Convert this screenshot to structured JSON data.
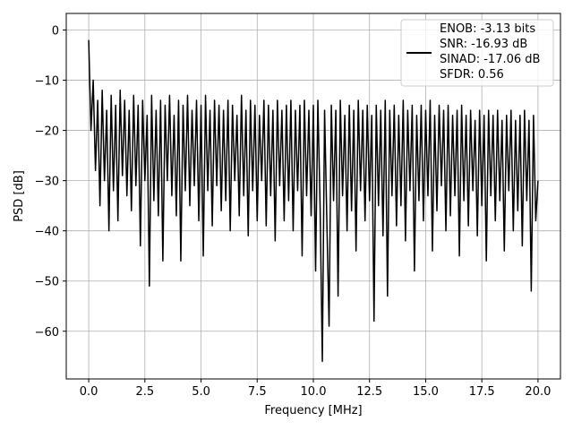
{
  "chart_data": {
    "type": "line",
    "x_label": "Frequency [MHz]",
    "y_label": "PSD [dB]",
    "xlim": [
      -1,
      21
    ],
    "ylim": [
      -69.5,
      3.3
    ],
    "xticks": [
      {
        "value": 0,
        "label": "0.0"
      },
      {
        "value": 2.5,
        "label": "2.5"
      },
      {
        "value": 5,
        "label": "5.0"
      },
      {
        "value": 7.5,
        "label": "7.5"
      },
      {
        "value": 10,
        "label": "10.0"
      },
      {
        "value": 12.5,
        "label": "12.5"
      },
      {
        "value": 15,
        "label": "15.0"
      },
      {
        "value": 17.5,
        "label": "17.5"
      },
      {
        "value": 20,
        "label": "20.0"
      }
    ],
    "yticks": [
      0,
      {
        "value": -10,
        "label": "−10"
      },
      {
        "value": -20,
        "label": "−20"
      },
      {
        "value": -30,
        "label": "−30"
      },
      {
        "value": -40,
        "label": "−40"
      },
      {
        "value": -50,
        "label": "−50"
      },
      {
        "value": -60,
        "label": "−60"
      }
    ],
    "grid": true,
    "legend": "upper right",
    "x": [
      0,
      0.1,
      0.2,
      0.3,
      0.4,
      0.5,
      0.6,
      0.7,
      0.8,
      0.9,
      1,
      1.1,
      1.2,
      1.3,
      1.4,
      1.5,
      1.6,
      1.7,
      1.8,
      1.9,
      2,
      2.1,
      2.2,
      2.3,
      2.4,
      2.5,
      2.6,
      2.7,
      2.8,
      2.9,
      3,
      3.1,
      3.2,
      3.3,
      3.4,
      3.5,
      3.6,
      3.7,
      3.8,
      3.9,
      4,
      4.1,
      4.2,
      4.3,
      4.4,
      4.5,
      4.6,
      4.7,
      4.8,
      4.9,
      5,
      5.1,
      5.2,
      5.3,
      5.4,
      5.5,
      5.6,
      5.7,
      5.8,
      5.9,
      6,
      6.1,
      6.2,
      6.3,
      6.4,
      6.5,
      6.6,
      6.7,
      6.8,
      6.9,
      7,
      7.1,
      7.2,
      7.3,
      7.4,
      7.5,
      7.6,
      7.7,
      7.8,
      7.9,
      8,
      8.1,
      8.2,
      8.3,
      8.4,
      8.5,
      8.6,
      8.7,
      8.8,
      8.9,
      9,
      9.1,
      9.2,
      9.3,
      9.4,
      9.5,
      9.6,
      9.7,
      9.8,
      9.9,
      10,
      10.1,
      10.2,
      10.3,
      10.4,
      10.5,
      10.6,
      10.7,
      10.8,
      10.9,
      11,
      11.1,
      11.2,
      11.3,
      11.4,
      11.5,
      11.6,
      11.7,
      11.8,
      11.9,
      12,
      12.1,
      12.2,
      12.3,
      12.4,
      12.5,
      12.6,
      12.7,
      12.8,
      12.9,
      13,
      13.1,
      13.2,
      13.3,
      13.4,
      13.5,
      13.6,
      13.7,
      13.8,
      13.9,
      14,
      14.1,
      14.2,
      14.3,
      14.4,
      14.5,
      14.6,
      14.7,
      14.8,
      14.9,
      15,
      15.1,
      15.2,
      15.3,
      15.4,
      15.5,
      15.6,
      15.7,
      15.8,
      15.9,
      16,
      16.1,
      16.2,
      16.3,
      16.4,
      16.5,
      16.6,
      16.7,
      16.8,
      16.9,
      17,
      17.1,
      17.2,
      17.3,
      17.4,
      17.5,
      17.6,
      17.7,
      17.8,
      17.9,
      18,
      18.1,
      18.2,
      18.3,
      18.4,
      18.5,
      18.6,
      18.7,
      18.8,
      18.9,
      19,
      19.1,
      19.2,
      19.3,
      19.4,
      19.5,
      19.6,
      19.7,
      19.8,
      19.9,
      20
    ],
    "series": [
      {
        "name": "ENOB: -3.13 bits\nSNR: -16.93 dB\nSINAD: -17.06 dB\nSFDR: 0.56",
        "color": "#000000",
        "values": [
          -2,
          -20,
          -10,
          -28,
          -14,
          -35,
          -12,
          -30,
          -16,
          -40,
          -13,
          -32,
          -15,
          -38,
          -12,
          -29,
          -14,
          -33,
          -16,
          -36,
          -13,
          -31,
          -15,
          -43,
          -14,
          -30,
          -17,
          -51,
          -13,
          -34,
          -16,
          -37,
          -14,
          -46,
          -15,
          -30,
          -13,
          -33,
          -17,
          -37,
          -14,
          -46,
          -15,
          -32,
          -13,
          -35,
          -16,
          -31,
          -14,
          -38,
          -15,
          -45,
          -13,
          -32,
          -16,
          -39,
          -14,
          -31,
          -15,
          -36,
          -16,
          -34,
          -14,
          -40,
          -15,
          -30,
          -17,
          -37,
          -13,
          -33,
          -16,
          -41,
          -14,
          -32,
          -15,
          -38,
          -17,
          -30,
          -14,
          -39,
          -15,
          -33,
          -16,
          -42,
          -14,
          -31,
          -16,
          -38,
          -15,
          -34,
          -14,
          -40,
          -16,
          -32,
          -15,
          -45,
          -14,
          -33,
          -16,
          -37,
          -15,
          -48,
          -14,
          -35,
          -66,
          -16,
          -38,
          -59,
          -15,
          -34,
          -16,
          -53,
          -14,
          -33,
          -17,
          -40,
          -15,
          -36,
          -16,
          -44,
          -14,
          -32,
          -16,
          -38,
          -15,
          -34,
          -17,
          -58,
          -15,
          -35,
          -16,
          -41,
          -14,
          -53,
          -16,
          -33,
          -15,
          -39,
          -17,
          -35,
          -14,
          -42,
          -16,
          -32,
          -15,
          -48,
          -17,
          -34,
          -15,
          -38,
          -16,
          -33,
          -14,
          -44,
          -17,
          -36,
          -15,
          -31,
          -16,
          -40,
          -15,
          -37,
          -17,
          -33,
          -16,
          -45,
          -15,
          -34,
          -17,
          -39,
          -16,
          -32,
          -18,
          -41,
          -16,
          -35,
          -17,
          -46,
          -16,
          -33,
          -17,
          -38,
          -16,
          -34,
          -18,
          -44,
          -17,
          -32,
          -16,
          -40,
          -18,
          -36,
          -17,
          -43,
          -16,
          -34,
          -18,
          -52,
          -17,
          -38,
          -30
        ]
      }
    ]
  }
}
